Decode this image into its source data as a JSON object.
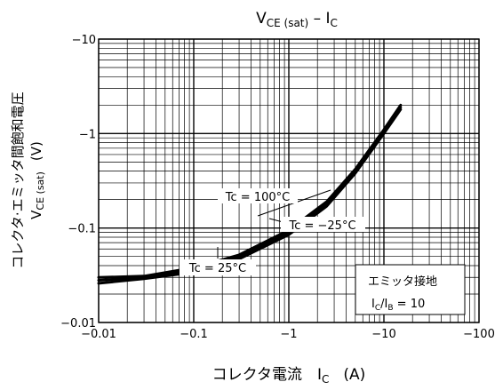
{
  "chart_data": {
    "type": "line",
    "title": {
      "main": "V",
      "sub": "CE (sat)",
      "mid": " – I",
      "sub2": "C"
    },
    "xlabel": {
      "main": "コレクタ電流　I",
      "sub": "C",
      "unit": "(A)"
    },
    "ylabel": {
      "line1": "コレクタ·エミッタ間飽和電圧",
      "main": "V",
      "sub": "CE (sat)",
      "unit": "(V)"
    },
    "x_scale": "log",
    "y_scale": "log",
    "xlim": [
      -0.01,
      -100
    ],
    "ylim": [
      -0.01,
      -10
    ],
    "x_ticks": [
      {
        "value": -0.01,
        "label": "−0.01"
      },
      {
        "value": -0.1,
        "label": "−0.1"
      },
      {
        "value": -1,
        "label": "−1"
      },
      {
        "value": -10,
        "label": "−10"
      },
      {
        "value": -100,
        "label": "−100"
      }
    ],
    "y_ticks": [
      {
        "value": -10,
        "label": "−10"
      },
      {
        "value": -1,
        "label": "−1"
      },
      {
        "value": -0.1,
        "label": "−0.1"
      },
      {
        "value": -0.01,
        "label": "−0.01"
      }
    ],
    "grid": true,
    "series": [
      {
        "name": "Tc = 100°C",
        "x": [
          -0.01,
          -0.03,
          -0.1,
          -0.3,
          -1,
          -2.5,
          -5,
          -10,
          -15
        ],
        "y": [
          -0.03,
          -0.031,
          -0.038,
          -0.052,
          -0.095,
          -0.19,
          -0.42,
          -1.1,
          -2.0
        ]
      },
      {
        "name": "Tc = 25°C",
        "x": [
          -0.01,
          -0.03,
          -0.1,
          -0.3,
          -1,
          -2.5,
          -5,
          -10,
          -15
        ],
        "y": [
          -0.028,
          -0.03,
          -0.036,
          -0.05,
          -0.09,
          -0.18,
          -0.4,
          -1.05,
          -1.9
        ]
      },
      {
        "name": "Tc = −25°C",
        "x": [
          -0.01,
          -0.03,
          -0.1,
          -0.3,
          -1,
          -2.5,
          -5,
          -10,
          -15
        ],
        "y": [
          -0.026,
          -0.029,
          -0.034,
          -0.047,
          -0.085,
          -0.17,
          -0.38,
          -1.0,
          -1.8
        ]
      }
    ],
    "annotations": {
      "tc100": "Tc = 100°C",
      "tcm25": "Tc = −25°C",
      "tc25": "Tc = 25°C"
    },
    "condition_box": {
      "line1": "エミッタ接地",
      "line2_a": "I",
      "line2_a_sub": "C",
      "line2_b": "/I",
      "line2_b_sub": "B",
      "line2_c": " = 10"
    }
  }
}
